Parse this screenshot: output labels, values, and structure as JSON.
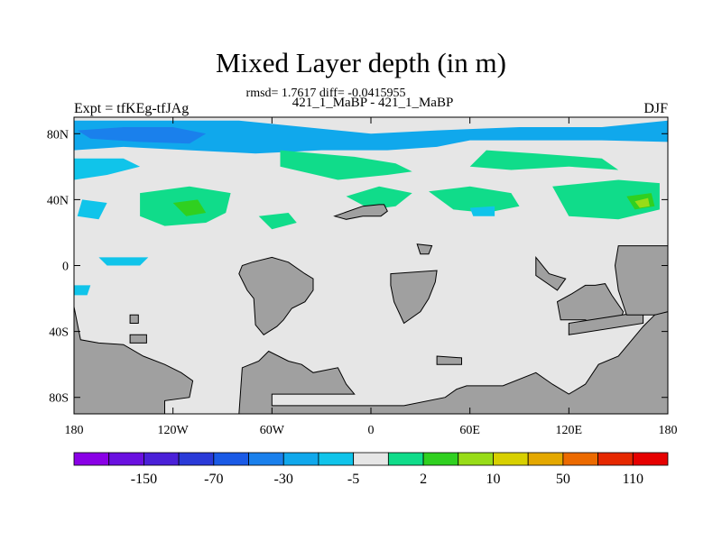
{
  "chart_data": {
    "type": "heatmap",
    "title": "Mixed Layer depth (in m)",
    "stats": "rmsd= 1.7617 diff= -0.0415955",
    "subtitle": "421_1_MaBP - 421_1_MaBP",
    "left_label": "Expt = tfKEg-tfJAg",
    "right_label": "DJF",
    "xlim": [
      -180,
      180
    ],
    "ylim": [
      -90,
      90
    ],
    "x_ticks": [
      {
        "value": -180,
        "label": "180"
      },
      {
        "value": -120,
        "label": "120W"
      },
      {
        "value": -60,
        "label": "60W"
      },
      {
        "value": 0,
        "label": "0"
      },
      {
        "value": 60,
        "label": "60E"
      },
      {
        "value": 120,
        "label": "120E"
      },
      {
        "value": 180,
        "label": "180"
      }
    ],
    "y_ticks": [
      {
        "value": 80,
        "label": "80N"
      },
      {
        "value": 40,
        "label": "40N"
      },
      {
        "value": 0,
        "label": "0"
      },
      {
        "value": -40,
        "label": "40S"
      },
      {
        "value": -80,
        "label": "80S"
      }
    ],
    "background_color": "#e6e6e6",
    "land_color": "#a0a0a0",
    "colorbar": {
      "colors": [
        "#8a00e6",
        "#6a10e0",
        "#4a20d8",
        "#2a3ad8",
        "#1a5ae6",
        "#1a80ec",
        "#10a8ec",
        "#10c4ea",
        "#e6e6e6",
        "#10dc8a",
        "#30d020",
        "#98dc18",
        "#d8d000",
        "#e4a800",
        "#ec6a00",
        "#e62800",
        "#e60000"
      ],
      "labels": [
        {
          "after_index": 1,
          "label": "-150"
        },
        {
          "after_index": 3,
          "label": "-70"
        },
        {
          "after_index": 5,
          "label": "-30"
        },
        {
          "after_index": 7,
          "label": "-5"
        },
        {
          "after_index": 9,
          "label": "2"
        },
        {
          "after_index": 11,
          "label": "10"
        },
        {
          "after_index": 13,
          "label": "50"
        },
        {
          "after_index": 15,
          "label": "110"
        }
      ]
    },
    "land": [
      {
        "name": "land-north-africa",
        "points": [
          [
            -22,
            30
          ],
          [
            -5,
            36
          ],
          [
            5,
            37
          ],
          [
            8,
            37
          ],
          [
            10,
            33
          ],
          [
            6,
            30
          ],
          [
            -5,
            30
          ],
          [
            -15,
            28
          ]
        ]
      },
      {
        "name": "land-south-america",
        "points": [
          [
            -40,
            -5
          ],
          [
            -35,
            -8
          ],
          [
            -35,
            -15
          ],
          [
            -40,
            -22
          ],
          [
            -48,
            -26
          ],
          [
            -53,
            -33
          ],
          [
            -57,
            -37
          ],
          [
            -65,
            -42
          ],
          [
            -70,
            -36
          ],
          [
            -71,
            -20
          ],
          [
            -75,
            -15
          ],
          [
            -80,
            -5
          ],
          [
            -78,
            0
          ],
          [
            -72,
            2
          ],
          [
            -60,
            5
          ],
          [
            -50,
            2
          ]
        ]
      },
      {
        "name": "land-africa",
        "points": [
          [
            12,
            -5
          ],
          [
            40,
            -3
          ],
          [
            39,
            -10
          ],
          [
            35,
            -20
          ],
          [
            30,
            -28
          ],
          [
            20,
            -35
          ],
          [
            14,
            -22
          ],
          [
            12,
            -12
          ]
        ]
      },
      {
        "name": "land-australia",
        "points": [
          [
            113,
            -22
          ],
          [
            115,
            -33
          ],
          [
            130,
            -33
          ],
          [
            140,
            -38
          ],
          [
            150,
            -37
          ],
          [
            153,
            -28
          ],
          [
            146,
            -18
          ],
          [
            142,
            -11
          ],
          [
            136,
            -12
          ],
          [
            130,
            -12
          ],
          [
            122,
            -17
          ]
        ]
      },
      {
        "name": "land-tropical-asia",
        "points": [
          [
            120,
            -35
          ],
          [
            165,
            -28
          ],
          [
            165,
            -35
          ],
          [
            120,
            -42
          ]
        ]
      },
      {
        "name": "land-east-asia",
        "points": [
          [
            150,
            12
          ],
          [
            180,
            12
          ],
          [
            180,
            -30
          ],
          [
            155,
            -30
          ],
          [
            150,
            -15
          ],
          [
            148,
            0
          ]
        ]
      },
      {
        "name": "land-sea-islands",
        "points": [
          [
            100,
            5
          ],
          [
            108,
            -5
          ],
          [
            118,
            -8
          ],
          [
            113,
            -15
          ],
          [
            100,
            -6
          ]
        ]
      },
      {
        "name": "land-antarctica-west",
        "points": [
          [
            -180,
            -90
          ],
          [
            -180,
            -25
          ],
          [
            -176,
            -45
          ],
          [
            -165,
            -47
          ],
          [
            -150,
            -48
          ],
          [
            -138,
            -55
          ],
          [
            -125,
            -60
          ],
          [
            -115,
            -65
          ],
          [
            -108,
            -70
          ],
          [
            -110,
            -80
          ],
          [
            -125,
            -82
          ],
          [
            -125,
            -90
          ]
        ]
      },
      {
        "name": "land-antarctica-east",
        "points": [
          [
            -80,
            -90
          ],
          [
            -78,
            -62
          ],
          [
            -68,
            -58
          ],
          [
            -62,
            -52
          ],
          [
            -50,
            -58
          ],
          [
            -42,
            -60
          ],
          [
            -35,
            -65
          ],
          [
            -20,
            -62
          ],
          [
            -15,
            -72
          ],
          [
            -10,
            -78
          ],
          [
            -60,
            -78
          ],
          [
            -60,
            -85
          ],
          [
            -20,
            -85
          ],
          [
            20,
            -85
          ],
          [
            45,
            -80
          ],
          [
            52,
            -75
          ],
          [
            58,
            -73
          ],
          [
            80,
            -73
          ],
          [
            100,
            -65
          ],
          [
            110,
            -72
          ],
          [
            120,
            -78
          ],
          [
            130,
            -72
          ],
          [
            138,
            -60
          ],
          [
            150,
            -55
          ],
          [
            165,
            -37
          ],
          [
            172,
            -30
          ],
          [
            180,
            -28
          ],
          [
            180,
            -90
          ]
        ]
      },
      {
        "name": "land-island-1",
        "points": [
          [
            -146,
            -30
          ],
          [
            -141,
            -30
          ],
          [
            -141,
            -35
          ],
          [
            -146,
            -35
          ]
        ]
      },
      {
        "name": "land-island-2",
        "points": [
          [
            28,
            13
          ],
          [
            37,
            12
          ],
          [
            35,
            7
          ],
          [
            30,
            7
          ]
        ]
      },
      {
        "name": "land-island-3",
        "points": [
          [
            -146,
            -42
          ],
          [
            -136,
            -42
          ],
          [
            -136,
            -47
          ],
          [
            -146,
            -47
          ]
        ]
      },
      {
        "name": "land-island-4",
        "points": [
          [
            40,
            -55
          ],
          [
            55,
            -56
          ],
          [
            55,
            -60
          ],
          [
            40,
            -60
          ]
        ]
      }
    ],
    "anomalies": [
      {
        "name": "anomaly-arctic-band",
        "color": "#10a8ec",
        "points": [
          [
            -180,
            88
          ],
          [
            -130,
            88
          ],
          [
            -80,
            88
          ],
          [
            -40,
            84
          ],
          [
            0,
            80
          ],
          [
            40,
            82
          ],
          [
            90,
            84
          ],
          [
            140,
            84
          ],
          [
            180,
            88
          ],
          [
            180,
            75
          ],
          [
            140,
            76
          ],
          [
            100,
            76
          ],
          [
            60,
            76
          ],
          [
            40,
            72
          ],
          [
            10,
            70
          ],
          [
            -30,
            70
          ],
          [
            -70,
            68
          ],
          [
            -110,
            70
          ],
          [
            -150,
            72
          ],
          [
            -180,
            70
          ]
        ]
      },
      {
        "name": "anomaly-arctic-deep",
        "color": "#1a80ec",
        "points": [
          [
            -178,
            82
          ],
          [
            -150,
            84
          ],
          [
            -120,
            84
          ],
          [
            -100,
            80
          ],
          [
            -110,
            74
          ],
          [
            -140,
            75
          ],
          [
            -170,
            77
          ]
        ]
      },
      {
        "name": "anomaly-nw-pacific",
        "color": "#10c4ea",
        "points": [
          [
            -180,
            65
          ],
          [
            -150,
            65
          ],
          [
            -140,
            60
          ],
          [
            -160,
            55
          ],
          [
            -180,
            52
          ]
        ]
      },
      {
        "name": "anomaly-north-atlantic",
        "color": "#10dc8a",
        "points": [
          [
            -55,
            70
          ],
          [
            -10,
            66
          ],
          [
            15,
            62
          ],
          [
            25,
            57
          ],
          [
            10,
            55
          ],
          [
            -20,
            52
          ],
          [
            -55,
            60
          ]
        ]
      },
      {
        "name": "anomaly-nordic",
        "color": "#10dc8a",
        "points": [
          [
            70,
            70
          ],
          [
            100,
            68
          ],
          [
            140,
            65
          ],
          [
            150,
            58
          ],
          [
            120,
            60
          ],
          [
            85,
            58
          ],
          [
            60,
            60
          ]
        ]
      },
      {
        "name": "anomaly-north-pacific",
        "color": "#10dc8a",
        "points": [
          [
            -140,
            44
          ],
          [
            -110,
            48
          ],
          [
            -85,
            44
          ],
          [
            -88,
            32
          ],
          [
            -100,
            26
          ],
          [
            -125,
            24
          ],
          [
            -140,
            30
          ]
        ]
      },
      {
        "name": "anomaly-north-pacific-core",
        "color": "#30d020",
        "points": [
          [
            -120,
            38
          ],
          [
            -105,
            40
          ],
          [
            -100,
            32
          ],
          [
            -112,
            30
          ]
        ]
      },
      {
        "name": "anomaly-mid-atlantic",
        "color": "#10dc8a",
        "points": [
          [
            -15,
            42
          ],
          [
            5,
            48
          ],
          [
            25,
            44
          ],
          [
            15,
            36
          ],
          [
            0,
            34
          ]
        ]
      },
      {
        "name": "anomaly-central",
        "color": "#10dc8a",
        "points": [
          [
            35,
            45
          ],
          [
            60,
            48
          ],
          [
            85,
            44
          ],
          [
            90,
            36
          ],
          [
            70,
            32
          ],
          [
            50,
            34
          ]
        ]
      },
      {
        "name": "anomaly-east",
        "color": "#10dc8a",
        "points": [
          [
            110,
            48
          ],
          [
            150,
            52
          ],
          [
            175,
            50
          ],
          [
            175,
            34
          ],
          [
            150,
            28
          ],
          [
            120,
            30
          ]
        ]
      },
      {
        "name": "anomaly-east-core",
        "color": "#30d020",
        "points": [
          [
            155,
            42
          ],
          [
            170,
            44
          ],
          [
            172,
            36
          ],
          [
            160,
            34
          ]
        ]
      },
      {
        "name": "anomaly-east-peak",
        "color": "#98dc18",
        "points": [
          [
            160,
            39
          ],
          [
            168,
            41
          ],
          [
            169,
            36
          ],
          [
            163,
            35
          ]
        ]
      },
      {
        "name": "anomaly-west-tropics",
        "color": "#10c4ea",
        "points": [
          [
            -175,
            40
          ],
          [
            -160,
            38
          ],
          [
            -165,
            28
          ],
          [
            -178,
            30
          ]
        ]
      },
      {
        "name": "anomaly-gulf",
        "color": "#10dc8a",
        "points": [
          [
            -68,
            30
          ],
          [
            -50,
            32
          ],
          [
            -45,
            26
          ],
          [
            -60,
            22
          ]
        ]
      },
      {
        "name": "anomaly-equatorial-west",
        "color": "#10c4ea",
        "points": [
          [
            -165,
            5
          ],
          [
            -135,
            5
          ],
          [
            -140,
            0
          ],
          [
            -160,
            0
          ]
        ]
      },
      {
        "name": "anomaly-tropical-east",
        "color": "#10c4ea",
        "points": [
          [
            60,
            35
          ],
          [
            75,
            36
          ],
          [
            75,
            30
          ],
          [
            62,
            30
          ]
        ]
      },
      {
        "name": "anomaly-south-west",
        "color": "#10c4ea",
        "points": [
          [
            -180,
            -12
          ],
          [
            -170,
            -12
          ],
          [
            -172,
            -18
          ],
          [
            -180,
            -18
          ]
        ]
      }
    ]
  }
}
